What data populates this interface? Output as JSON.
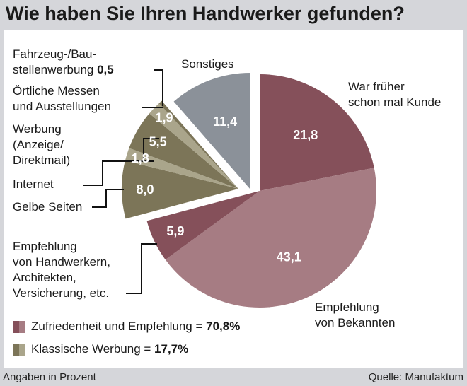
{
  "title": "Wie haben Sie Ihren Handwerker gefunden?",
  "chart_data": {
    "type": "pie",
    "title": "Wie haben Sie Ihren Handwerker gefunden?",
    "unit_note": "Angaben in Prozent",
    "source": "Quelle: Manufaktum",
    "slices": [
      {
        "label": "War früher schon mal Kunde",
        "value": 21.8,
        "value_label": "21,8",
        "group": "Zufriedenheit und Empfehlung",
        "color": "#85505a"
      },
      {
        "label": "Empfehlung von Bekannten",
        "value": 43.1,
        "value_label": "43,1",
        "group": "Zufriedenheit und Empfehlung",
        "color": "#a67c83"
      },
      {
        "label": "Empfehlung von Handwerkern, Architekten, Versicherung, etc.",
        "value": 5.9,
        "value_label": "5,9",
        "group": "Zufriedenheit und Empfehlung",
        "color": "#85505a"
      },
      {
        "label": "Gelbe Seiten",
        "value": 8.0,
        "value_label": "8,0",
        "group": "Klassische Werbung",
        "color": "#7c7558"
      },
      {
        "label": "Internet",
        "value": 1.8,
        "value_label": "1,8",
        "group": "Klassische Werbung",
        "color": "#aaa58b"
      },
      {
        "label": "Werbung (Anzeige/ Direktmail)",
        "value": 5.5,
        "value_label": "5,5",
        "group": "Klassische Werbung",
        "color": "#7c7558"
      },
      {
        "label": "Örtliche Messen und Ausstellungen",
        "value": 1.9,
        "value_label": "1,9",
        "group": "Klassische Werbung",
        "color": "#aaa58b"
      },
      {
        "label": "Fahrzeug-/Baustellenwerbung",
        "value": 0.5,
        "value_label": "0,5",
        "group": "Klassische Werbung",
        "color": "#7c7558"
      },
      {
        "label": "Sonstiges",
        "value": 11.4,
        "value_label": "11,4",
        "group": "Sonstiges",
        "color": "#8b9199"
      }
    ],
    "legend": [
      {
        "label": "Zufriedenheit und Empfehlung = ",
        "value": "70,8%",
        "colors": [
          "#85505a",
          "#a67c83"
        ]
      },
      {
        "label": "Klassische Werbung = ",
        "value": "17,7%",
        "colors": [
          "#7c7558",
          "#aaa58b"
        ]
      }
    ]
  },
  "labels": {
    "fahrzeug_1": "Fahrzeug-/Bau-",
    "fahrzeug_2": "stellenwerbung ",
    "fahrzeug_val": "0,5",
    "messen_1": "Örtliche Messen",
    "messen_2": "und Ausstellungen",
    "werbung_1": "Werbung",
    "werbung_2": "(Anzeige/",
    "werbung_3": "Direktmail)",
    "internet": "Internet",
    "gelbe": "Gelbe Seiten",
    "handw_1": "Empfehlung",
    "handw_2": "von Handwerkern,",
    "handw_3": "Architekten,",
    "handw_4": "Versicherung, etc.",
    "sonstiges": "Sonstiges",
    "kunde_1": "War früher",
    "kunde_2": "schon mal Kunde",
    "bek_1": "Empfehlung",
    "bek_2": "von Bekannten"
  },
  "footer": {
    "left": "Angaben in Prozent",
    "right": "Quelle: Manufaktum"
  }
}
